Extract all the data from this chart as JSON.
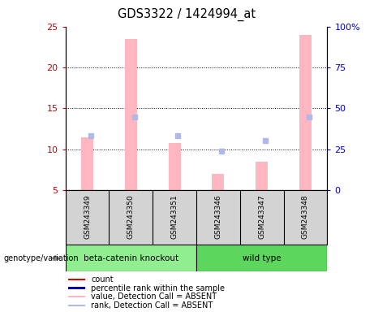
{
  "title": "GDS3322 / 1424994_at",
  "samples": [
    "GSM243349",
    "GSM243350",
    "GSM243351",
    "GSM243346",
    "GSM243347",
    "GSM243348"
  ],
  "group_labels": [
    "beta-catenin knockout",
    "wild type"
  ],
  "group_colors": [
    "#90EE90",
    "#5CD65C"
  ],
  "bar_values_absent": [
    11.5,
    23.5,
    10.8,
    7.0,
    8.5,
    24.0
  ],
  "rank_values_absent": [
    11.7,
    14.0,
    11.7,
    9.8,
    11.1,
    14.0
  ],
  "ylim_left": [
    5,
    25
  ],
  "ylim_right": [
    0,
    100
  ],
  "yticks_left": [
    5,
    10,
    15,
    20,
    25
  ],
  "yticks_right": [
    0,
    25,
    50,
    75,
    100
  ],
  "bar_color_absent": "#FFB6C1",
  "rank_color_absent": "#B0B8E8",
  "dot_color_red": "#DD0000",
  "dot_color_blue": "#0000BB",
  "legend_labels": [
    "count",
    "percentile rank within the sample",
    "value, Detection Call = ABSENT",
    "rank, Detection Call = ABSENT"
  ],
  "legend_colors": [
    "#DD0000",
    "#0000BB",
    "#FFB6C1",
    "#B0B8E8"
  ],
  "left_tick_color": "#CC0000",
  "right_tick_color": "#0000CC",
  "background_color": "#FFFFFF",
  "genotype_label": "genotype/variation"
}
